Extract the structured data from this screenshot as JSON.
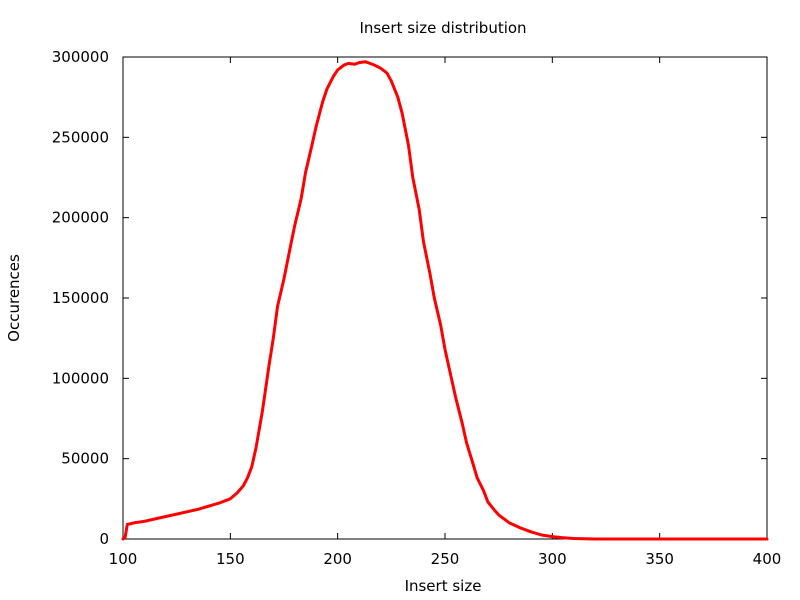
{
  "chart_data": {
    "type": "line",
    "title": "Insert size distribution",
    "xlabel": "Insert size",
    "ylabel": "Occurences",
    "xlim": [
      100,
      400
    ],
    "ylim": [
      0,
      300000
    ],
    "x_ticks": [
      "100",
      "150",
      "200",
      "250",
      "300",
      "350",
      "400"
    ],
    "y_ticks": [
      "0",
      "50000",
      "100000",
      "150000",
      "200000",
      "250000",
      "300000"
    ],
    "grid": false,
    "legend": "none",
    "series_color": "#ff0000",
    "series": [
      {
        "x": [
          100,
          101,
          102,
          105,
          110,
          115,
          120,
          125,
          130,
          135,
          140,
          145,
          150,
          153,
          156,
          158,
          160,
          162,
          165,
          168,
          170,
          172,
          175,
          178,
          180,
          183,
          185,
          188,
          190,
          193,
          195,
          198,
          200,
          203,
          205,
          208,
          210,
          213,
          215,
          217,
          220,
          223,
          225,
          228,
          230,
          233,
          235,
          238,
          240,
          243,
          245,
          248,
          250,
          253,
          255,
          258,
          260,
          263,
          265,
          268,
          270,
          273,
          275,
          278,
          280,
          285,
          290,
          295,
          300,
          305,
          310,
          315,
          320,
          330,
          340,
          350,
          360,
          370,
          380,
          390,
          400
        ],
        "y": [
          0,
          1000,
          9000,
          10000,
          11000,
          12500,
          14000,
          15500,
          17000,
          18500,
          20500,
          22500,
          25000,
          28500,
          33000,
          38000,
          45000,
          57000,
          80000,
          108000,
          125000,
          145000,
          162000,
          182000,
          195000,
          212000,
          228000,
          245000,
          257000,
          272000,
          280000,
          288000,
          292000,
          295000,
          296000,
          295500,
          296500,
          297000,
          296000,
          295000,
          293000,
          290000,
          285000,
          275000,
          265000,
          245000,
          225000,
          205000,
          185000,
          165000,
          150000,
          133000,
          118000,
          100000,
          88000,
          72000,
          60000,
          47000,
          38000,
          30000,
          23000,
          18000,
          15000,
          12000,
          10000,
          7000,
          4500,
          2500,
          1500,
          800,
          300,
          100,
          0,
          0,
          0,
          0,
          0,
          0,
          0,
          0,
          0
        ]
      }
    ]
  }
}
